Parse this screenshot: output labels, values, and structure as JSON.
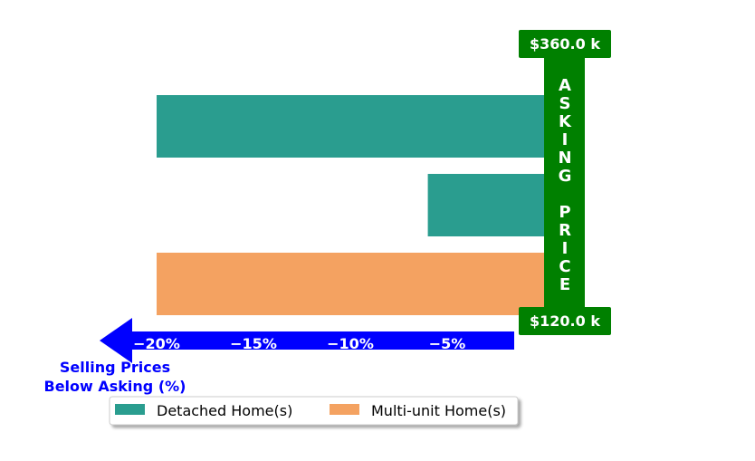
{
  "chart_data": {
    "type": "bar",
    "orientation": "horizontal",
    "categories": [
      "Detached Home(s)",
      "Detached Home(s)",
      "Multi-unit Home(s)"
    ],
    "values": [
      -20,
      -6,
      -20
    ],
    "bar_colors": [
      "#2a9d8f",
      "#2a9d8f",
      "#f4a261"
    ],
    "xticks": [
      -20,
      -15,
      -10,
      -5
    ],
    "xtick_labels": [
      "−20%",
      "−15%",
      "−10%",
      "−5%"
    ],
    "xlim": [
      -22,
      0
    ],
    "xlabel_lines": [
      "Selling Prices",
      "Below Asking (%)"
    ],
    "xlabel_color": "#0000ff",
    "arrow_color": "#0000ff",
    "asking_price": {
      "top_label": "$360.0 k",
      "bottom_label": "$120.0 k",
      "vertical_text": "ASKING PRICE",
      "color": "#008000"
    },
    "legend": {
      "placement": "bottom-center",
      "entries": [
        {
          "label": "Detached Home(s)",
          "color": "#2a9d8f"
        },
        {
          "label": "Multi-unit Home(s)",
          "color": "#f4a261"
        }
      ]
    },
    "grid": false
  }
}
